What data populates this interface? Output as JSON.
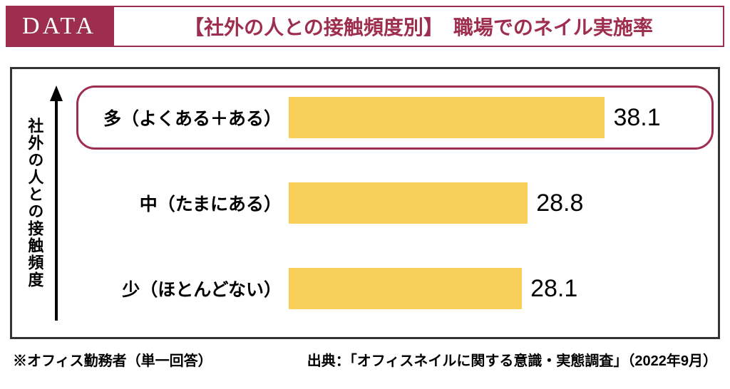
{
  "header": {
    "badge": "DATA",
    "title_bracket": "【社外の人との接触頻度別】",
    "title_main": "職場でのネイル実施率"
  },
  "chart": {
    "type": "bar",
    "orientation": "horizontal",
    "y_axis_label": "社外の人との接触頻度",
    "bar_color": "#f8cf5b",
    "highlight_border_color": "#9e2e50",
    "frame_border_color": "#333333",
    "value_fontsize": 34,
    "label_fontsize": 25,
    "xlim": [
      0,
      50
    ],
    "bars": [
      {
        "label": "多（よくある＋ある）",
        "value": 38.1,
        "highlighted": true
      },
      {
        "label": "中（たまにある）",
        "value": 28.8,
        "highlighted": false
      },
      {
        "label": "少（ほとんどない）",
        "value": 28.1,
        "highlighted": false
      }
    ]
  },
  "footer": {
    "note": "※オフィス勤務者（単一回答）",
    "source": "出典：「オフィスネイルに関する意識・実態調査」（2022年9月）"
  },
  "colors": {
    "brand": "#9e2e50",
    "bar": "#f8cf5b",
    "text": "#000000",
    "background": "#ffffff"
  }
}
